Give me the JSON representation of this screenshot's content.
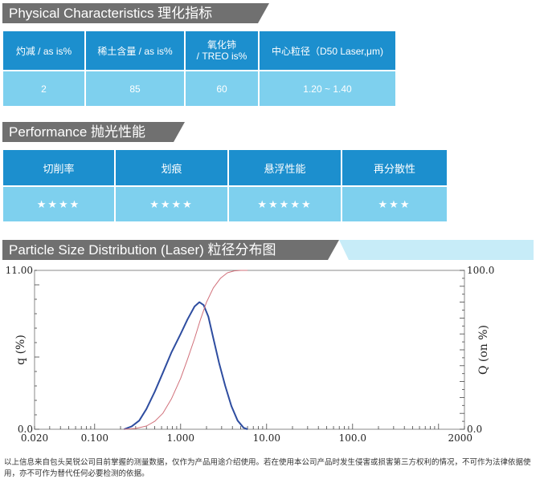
{
  "physical": {
    "title": "Physical Characteristics  理化指标",
    "headers": [
      "灼减 / as is%",
      "稀土含量 / as is%",
      "氧化铈",
      "/ TREO is%",
      "中心粒径（D50 Laser,μm)"
    ],
    "values": [
      "2",
      "85",
      "60",
      "1.20 ~ 1.40"
    ]
  },
  "performance": {
    "title": "Performance 抛光性能",
    "headers": [
      "切削率",
      "划痕",
      "悬浮性能",
      "再分散性"
    ],
    "ratings": [
      4,
      4,
      5,
      3
    ]
  },
  "psd": {
    "title": "Particle Size Distribution (Laser) 粒径分布图"
  },
  "chart_data": {
    "type": "line",
    "xscale": "log",
    "xlim": [
      0.02,
      2000
    ],
    "x_ticks": [
      "0.020",
      "0.100",
      "1.000",
      "10.00",
      "100.0",
      "2000"
    ],
    "ylabel_left": "q (%)",
    "ylim_left": [
      0.0,
      11.0
    ],
    "y_ticks_left": [
      "11.00",
      "0.0"
    ],
    "ylabel_right": "Q (on %)",
    "ylim_right": [
      0.0,
      100.0
    ],
    "y_ticks_right": [
      "100.0",
      "0.0"
    ],
    "series": [
      {
        "axis": "left",
        "color": "#2e4da0",
        "x": [
          0.22,
          0.27,
          0.33,
          0.4,
          0.5,
          0.62,
          0.78,
          1.0,
          1.2,
          1.45,
          1.65,
          1.85,
          2.1,
          2.4,
          2.8,
          3.3,
          3.9,
          4.6,
          5.4,
          6.0
        ],
        "y": [
          0.0,
          0.2,
          0.6,
          1.4,
          2.6,
          3.9,
          5.3,
          6.6,
          7.6,
          8.5,
          8.8,
          8.6,
          7.8,
          6.3,
          4.6,
          3.0,
          1.6,
          0.6,
          0.1,
          0.0
        ]
      },
      {
        "axis": "right",
        "color": "#d1707a",
        "x": [
          0.22,
          0.3,
          0.4,
          0.5,
          0.62,
          0.78,
          1.0,
          1.2,
          1.45,
          1.7,
          2.0,
          2.4,
          2.9,
          3.5,
          4.2,
          5.0,
          6.0
        ],
        "y": [
          0.0,
          0.5,
          2.0,
          5.0,
          10.0,
          19.0,
          32.0,
          44.0,
          57.0,
          69.0,
          80.0,
          89.0,
          95.0,
          98.5,
          99.7,
          100.0,
          100.0
        ]
      }
    ]
  },
  "note": "以上信息来自包头昊锐公司目前掌握的测量数据，仅作为产品用途介绍使用。若在使用本公司产品时发生侵害或损害第三方权利的情况，不可作为法律依据使用，亦不可作为替代任何必要检测的依据。"
}
